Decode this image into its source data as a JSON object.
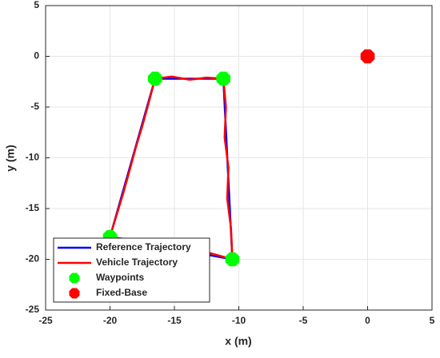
{
  "chart_data": {
    "type": "line",
    "xlabel": "x (m)",
    "ylabel": "y (m)",
    "xlim": [
      -25,
      5
    ],
    "ylim": [
      -25,
      5
    ],
    "xticks": [
      -25,
      -20,
      -15,
      -10,
      -5,
      0,
      5
    ],
    "yticks": [
      -25,
      -20,
      -15,
      -10,
      -5,
      0,
      5
    ],
    "grid": true,
    "legend": "lower-left",
    "series": [
      {
        "name": "Reference Trajectory",
        "color": "#0000ff",
        "style": "line",
        "x": [
          -20,
          -16.5,
          -11.2,
          -10.5,
          -20
        ],
        "y": [
          -17.8,
          -2.2,
          -2.2,
          -20,
          -17.8
        ]
      },
      {
        "name": "Vehicle Trajectory",
        "color": "#ff0000",
        "style": "line",
        "x": [
          -20,
          -19.6,
          -19.0,
          -18.6,
          -18.0,
          -17.5,
          -17.0,
          -16.5,
          -15.2,
          -13.8,
          -12.5,
          -11.2,
          -11.0,
          -11.1,
          -10.8,
          -10.9,
          -10.6,
          -10.5,
          -12.5,
          -14.8,
          -17.0,
          -18.8,
          -20
        ],
        "y": [
          -17.8,
          -16.1,
          -13.6,
          -11.8,
          -9.0,
          -6.9,
          -4.6,
          -2.2,
          -2.0,
          -2.3,
          -2.1,
          -2.2,
          -5.0,
          -8.0,
          -11.0,
          -14.0,
          -17.0,
          -20,
          -19.3,
          -19.4,
          -18.5,
          -18.0,
          -17.8
        ]
      },
      {
        "name": "Waypoints",
        "color": "#00ff00",
        "style": "marker",
        "x": [
          -20,
          -16.5,
          -11.2,
          -10.5
        ],
        "y": [
          -17.8,
          -2.2,
          -2.2,
          -20
        ]
      },
      {
        "name": "Fixed-Base",
        "color": "#ff0000",
        "style": "marker",
        "x": [
          0
        ],
        "y": [
          0
        ]
      }
    ]
  }
}
